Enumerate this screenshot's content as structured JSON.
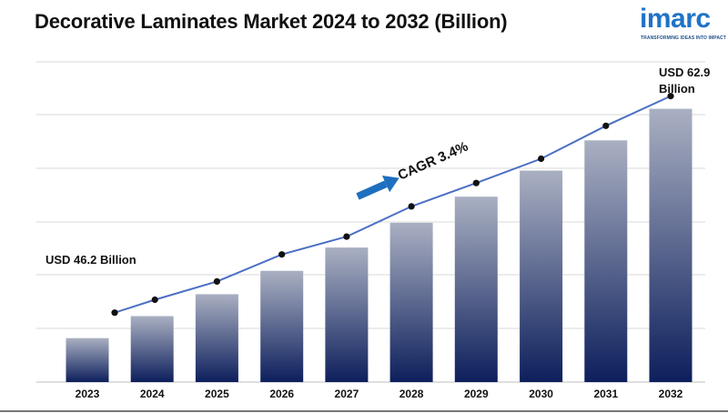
{
  "title": "Decorative Laminates Market 2024 to 2032 (Billion)",
  "logo": {
    "text": "imarc",
    "tagline": "TRANSFORMING IDEAS INTO IMPACT",
    "color": "#1f73c7"
  },
  "chart_data": {
    "type": "bar",
    "title": "Decorative Laminates Market 2024 to 2032 (Billion)",
    "categories": [
      "2023",
      "2024",
      "2025",
      "2026",
      "2027",
      "2028",
      "2029",
      "2030",
      "2031",
      "2032"
    ],
    "values": [
      46.2,
      47.8,
      49.4,
      51.1,
      52.8,
      54.6,
      56.5,
      58.4,
      60.6,
      62.9
    ],
    "ylim": [
      43,
      64
    ],
    "grid": true,
    "trend_line": true,
    "annotations": {
      "start_label": "USD 46.2 Billion",
      "end_label_line1": "USD 62.9",
      "end_label_line2": "Billion",
      "cagr": "CAGR 3.4%"
    },
    "colors": {
      "bar_top": "#aab0c2",
      "bar_bottom": "#0d1f5c",
      "line": "#4a6fc4",
      "marker": "#111111",
      "arrow": "#1f6fbf",
      "grid": "#d9d9d9"
    }
  }
}
